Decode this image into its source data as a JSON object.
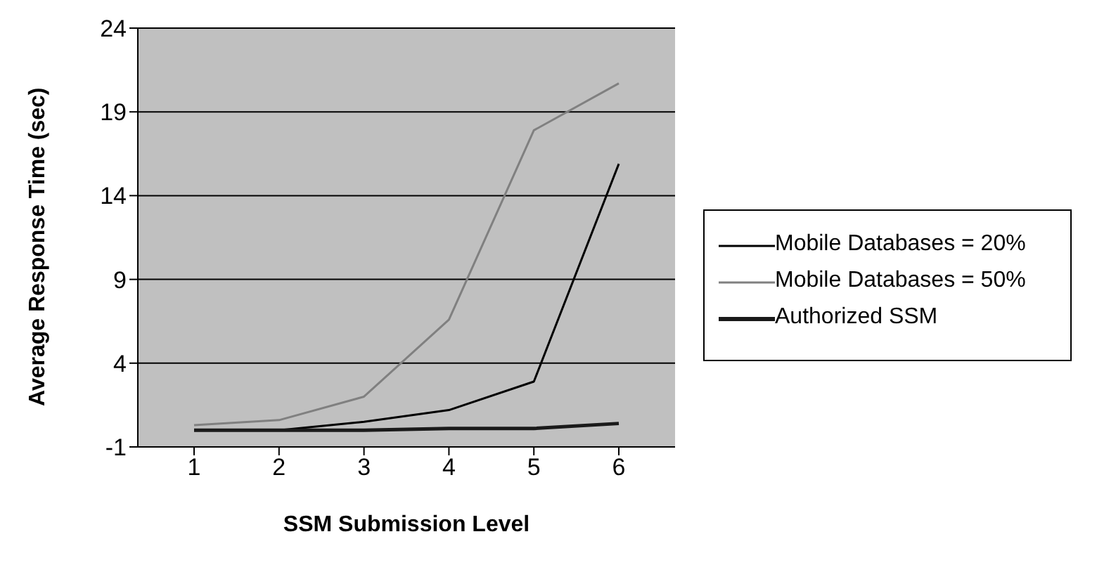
{
  "chart_data": {
    "type": "line",
    "xlabel": "SSM Submission Level",
    "ylabel": "Average Response Time (sec)",
    "categories": [
      "1",
      "2",
      "3",
      "4",
      "5",
      "6"
    ],
    "series": [
      {
        "name": "Mobile Databases = 20%",
        "color": "#000000",
        "values": [
          0,
          0,
          0.5,
          1.2,
          2.9,
          15.9
        ]
      },
      {
        "name": "Mobile Databases = 50%",
        "color": "#808080",
        "values": [
          0.3,
          0.6,
          2.0,
          6.6,
          17.9,
          20.7
        ]
      },
      {
        "name": "Authorized SSM",
        "color": "#1a1a1a",
        "values": [
          0,
          0,
          0,
          0.1,
          0.1,
          0.4
        ]
      }
    ],
    "ylim": [
      -1,
      24
    ],
    "yticks": [
      -1,
      4,
      9,
      14,
      19,
      24
    ],
    "grid": "y",
    "legend": "right",
    "marker": "none",
    "line_style": "solid"
  }
}
